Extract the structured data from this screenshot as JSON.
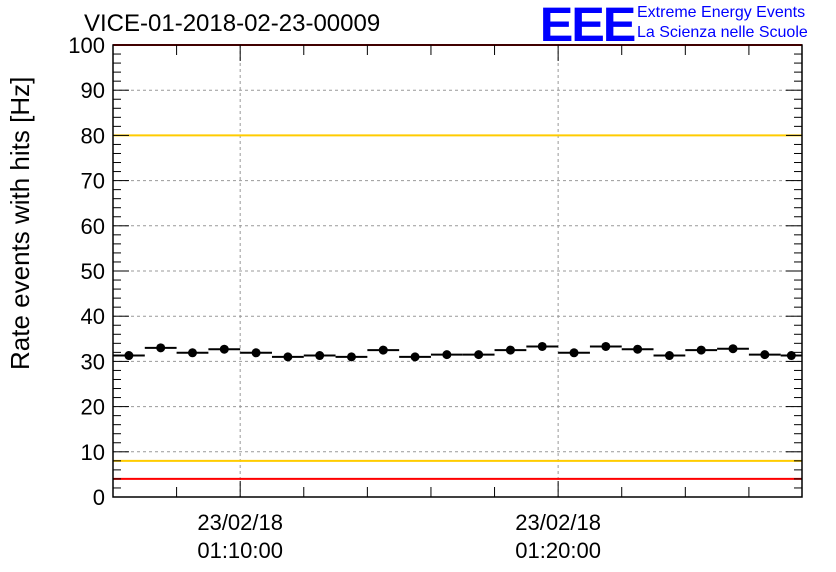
{
  "chart_data": {
    "type": "scatter",
    "title": "VICE-01-2018-02-23-00009",
    "logo": {
      "mark": "EEE",
      "line1": "Extreme Energy Events",
      "line2": "La Scienza nelle Scuole"
    },
    "ylabel": "Rate events with hits [Hz]",
    "xlabel": "",
    "ylim": [
      0,
      100
    ],
    "yticks": [
      0,
      10,
      20,
      30,
      40,
      50,
      60,
      70,
      80,
      90,
      100
    ],
    "xlim_minutes": [
      0,
      21.67
    ],
    "x_start": "23/02/18 01:06:00",
    "xticks": [
      {
        "minute": 4,
        "date": "23/02/18",
        "time": "01:10:00"
      },
      {
        "minute": 14,
        "date": "23/02/18",
        "time": "01:20:00"
      }
    ],
    "bin_width_minutes": 1,
    "values": [
      31.3,
      33.0,
      31.9,
      32.7,
      31.9,
      31.0,
      31.3,
      31.0,
      32.5,
      31.0,
      31.5,
      31.5,
      32.5,
      33.3,
      31.9,
      33.3,
      32.7,
      31.3,
      32.5,
      32.8,
      31.5,
      31.3
    ],
    "reference_lines": [
      {
        "y": 100,
        "color": "#ff0000"
      },
      {
        "y": 80,
        "color": "#ffcc00"
      },
      {
        "y": 8,
        "color": "#ffcc00"
      },
      {
        "y": 4,
        "color": "#ff0000"
      }
    ],
    "grid": true
  }
}
